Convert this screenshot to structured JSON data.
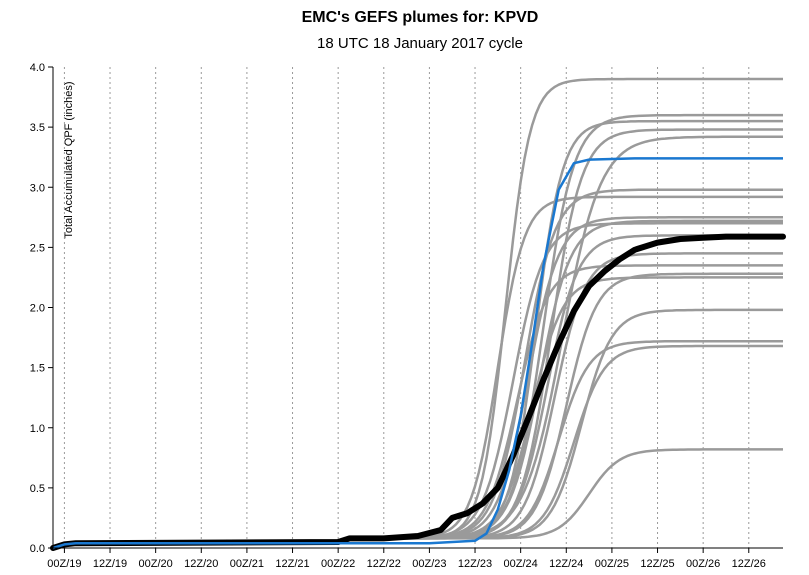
{
  "chart_data": {
    "type": "line",
    "title": "EMC's GEFS plumes for: KPVD",
    "subtitle": "18 UTC 18 January 2017 cycle",
    "ylabel": "Total Accumulated QPF (inches)",
    "xlabel": "",
    "x_unit": "hours after 00Z/19",
    "xlim": [
      -3,
      189
    ],
    "ylim": [
      0,
      4.0
    ],
    "yticks": [
      0.0,
      0.5,
      1.0,
      1.5,
      2.0,
      2.5,
      3.0,
      3.5,
      4.0
    ],
    "ytick_labels": [
      "0.0",
      "0.5",
      "1.0",
      "1.5",
      "2.0",
      "2.5",
      "3.0",
      "3.5",
      "4.0"
    ],
    "xticks": [
      0,
      12,
      24,
      36,
      48,
      60,
      72,
      84,
      96,
      108,
      120,
      132,
      144,
      156,
      168,
      180
    ],
    "xtick_labels": [
      "00Z/19",
      "12Z/19",
      "00Z/20",
      "12Z/20",
      "00Z/21",
      "12Z/21",
      "00Z/22",
      "12Z/22",
      "00Z/23",
      "12Z/23",
      "00Z/24",
      "12Z/24",
      "00Z/25",
      "12Z/25",
      "00Z/26",
      "12Z/26"
    ],
    "grid": "vertical dotted",
    "members_color": "#9a9a9a",
    "mean_color": "#000000",
    "control_color": "#1a78d0",
    "members": [
      {
        "start": [
          91,
          0.05
        ],
        "t": [
          90,
          0.08
        ],
        "k": 0.08,
        "mid": 116,
        "w": 3.2,
        "final": 3.9
      },
      {
        "start": [
          91,
          0.05
        ],
        "t": [
          90,
          0.08
        ],
        "k": 0.08,
        "mid": 126,
        "w": 4.0,
        "final": 3.6
      },
      {
        "start": [
          91,
          0.05
        ],
        "t": [
          90,
          0.08
        ],
        "k": 0.08,
        "mid": 124,
        "w": 3.5,
        "final": 3.55
      },
      {
        "start": [
          91,
          0.05
        ],
        "t": [
          90,
          0.08
        ],
        "k": 0.08,
        "mid": 128,
        "w": 4.0,
        "final": 3.48
      },
      {
        "start": [
          91,
          0.05
        ],
        "t": [
          90,
          0.08
        ],
        "k": 0.08,
        "mid": 131,
        "w": 5.0,
        "final": 3.42
      },
      {
        "start": [
          91,
          0.05
        ],
        "t": [
          90,
          0.08
        ],
        "k": 0.08,
        "mid": 121,
        "w": 4.0,
        "final": 2.98
      },
      {
        "start": [
          91,
          0.05
        ],
        "t": [
          90,
          0.08
        ],
        "k": 0.08,
        "mid": 114,
        "w": 3.5,
        "final": 2.92
      },
      {
        "start": [
          91,
          0.05
        ],
        "t": [
          90,
          0.08
        ],
        "k": 0.08,
        "mid": 122,
        "w": 4.0,
        "final": 2.75
      },
      {
        "start": [
          91,
          0.05
        ],
        "t": [
          90,
          0.08
        ],
        "k": 0.08,
        "mid": 125,
        "w": 4.0,
        "final": 2.72
      },
      {
        "start": [
          91,
          0.05
        ],
        "t": [
          90,
          0.08
        ],
        "k": 0.08,
        "mid": 118,
        "w": 4.0,
        "final": 2.7
      },
      {
        "start": [
          91,
          0.05
        ],
        "t": [
          90,
          0.08
        ],
        "k": 0.08,
        "mid": 127,
        "w": 4.0,
        "final": 2.6
      },
      {
        "start": [
          91,
          0.05
        ],
        "t": [
          90,
          0.08
        ],
        "k": 0.08,
        "mid": 129,
        "w": 4.0,
        "final": 2.45
      },
      {
        "start": [
          91,
          0.05
        ],
        "t": [
          90,
          0.08
        ],
        "k": 0.08,
        "mid": 119,
        "w": 4.0,
        "final": 2.35
      },
      {
        "start": [
          91,
          0.05
        ],
        "t": [
          90,
          0.08
        ],
        "k": 0.08,
        "mid": 132,
        "w": 4.0,
        "final": 2.28
      },
      {
        "start": [
          91,
          0.05
        ],
        "t": [
          90,
          0.08
        ],
        "k": 0.08,
        "mid": 123,
        "w": 4.0,
        "final": 2.25
      },
      {
        "start": [
          91,
          0.05
        ],
        "t": [
          90,
          0.08
        ],
        "k": 0.08,
        "mid": 136,
        "w": 4.0,
        "final": 1.98
      },
      {
        "start": [
          91,
          0.05
        ],
        "t": [
          90,
          0.08
        ],
        "k": 0.08,
        "mid": 130,
        "w": 4.0,
        "final": 1.72
      },
      {
        "start": [
          91,
          0.05
        ],
        "t": [
          90,
          0.08
        ],
        "k": 0.08,
        "mid": 134,
        "w": 4.0,
        "final": 1.68
      },
      {
        "start": [
          91,
          0.05
        ],
        "t": [
          90,
          0.08
        ],
        "k": 0.08,
        "mid": 138,
        "w": 4.0,
        "final": 0.82
      }
    ],
    "mean": [
      [
        -3,
        0.0
      ],
      [
        0,
        0.03
      ],
      [
        3,
        0.04
      ],
      [
        72,
        0.05
      ],
      [
        75,
        0.08
      ],
      [
        84,
        0.08
      ],
      [
        93,
        0.1
      ],
      [
        99,
        0.15
      ],
      [
        102,
        0.25
      ],
      [
        106,
        0.29
      ],
      [
        110,
        0.37
      ],
      [
        114,
        0.5
      ],
      [
        118,
        0.77
      ],
      [
        122,
        1.08
      ],
      [
        126,
        1.4
      ],
      [
        130,
        1.7
      ],
      [
        134,
        1.97
      ],
      [
        138,
        2.18
      ],
      [
        142,
        2.3
      ],
      [
        146,
        2.4
      ],
      [
        150,
        2.48
      ],
      [
        156,
        2.54
      ],
      [
        162,
        2.57
      ],
      [
        168,
        2.58
      ],
      [
        174,
        2.59
      ],
      [
        180,
        2.59
      ],
      [
        189,
        2.59
      ]
    ],
    "control": [
      [
        -3,
        0.0
      ],
      [
        0,
        0.03
      ],
      [
        3,
        0.04
      ],
      [
        96,
        0.04
      ],
      [
        108,
        0.06
      ],
      [
        111,
        0.12
      ],
      [
        114,
        0.32
      ],
      [
        117,
        0.65
      ],
      [
        120,
        1.1
      ],
      [
        123,
        1.7
      ],
      [
        126,
        2.35
      ],
      [
        130,
        2.98
      ],
      [
        134,
        3.2
      ],
      [
        138,
        3.23
      ],
      [
        150,
        3.24
      ],
      [
        189,
        3.24
      ]
    ]
  }
}
